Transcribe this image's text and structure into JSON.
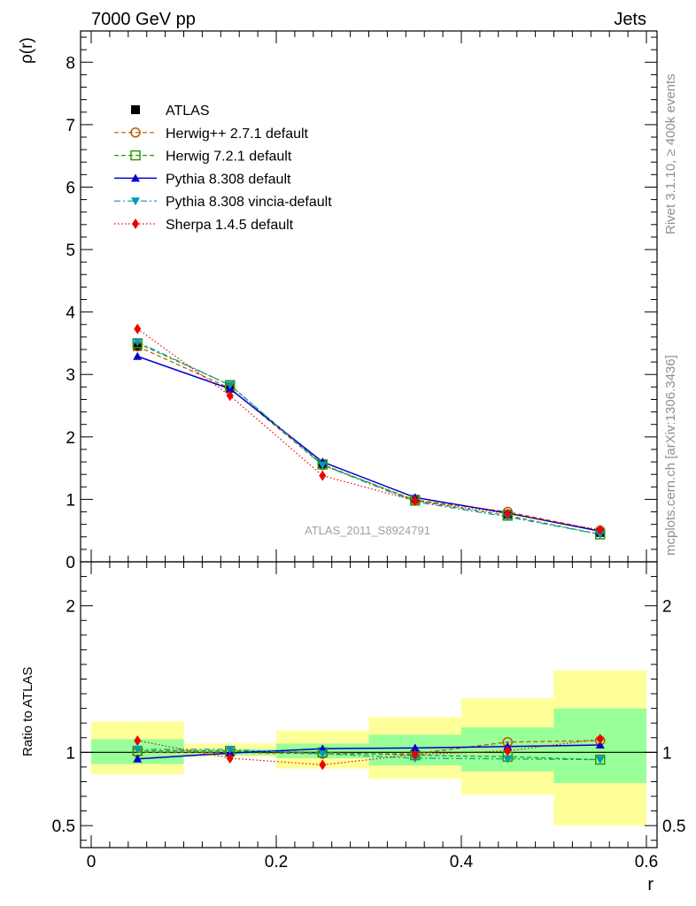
{
  "header": {
    "left": "7000 GeV pp",
    "right": "Jets"
  },
  "side_text": {
    "top": "Rivet 3.1.10, ≥ 400k events",
    "bottom": "mcplots.cern.ch [arXiv:1306.3436]"
  },
  "watermark": "ATLAS_2011_S8924791",
  "chart_data": [
    {
      "type": "line",
      "panel": "main",
      "ylabel": "ρ(r)",
      "xlabel": "",
      "xlim": [
        0,
        0.6
      ],
      "ylim": [
        0,
        8.5
      ],
      "yticks": [
        0,
        1,
        2,
        3,
        4,
        5,
        6,
        7,
        8
      ],
      "ytick_labels": [
        "0",
        "1",
        "2",
        "3",
        "4",
        "5",
        "6",
        "7",
        "8"
      ],
      "x": [
        0.05,
        0.15,
        0.25,
        0.35,
        0.45,
        0.55
      ],
      "series": [
        {
          "name": "ATLAS",
          "color": "#000000",
          "marker": "square",
          "line": "none",
          "values": [
            3.45,
            2.78,
            1.56,
            1.0,
            0.76,
            0.47
          ]
        },
        {
          "name": "Herwig++ 2.7.1 default",
          "color": "#b35900",
          "marker": "circle-open",
          "line": "dashed",
          "values": [
            3.45,
            2.78,
            1.55,
            0.99,
            0.8,
            0.5
          ]
        },
        {
          "name": "Herwig 7.2.1 default",
          "color": "#2e9a00",
          "marker": "square-open",
          "line": "dashed",
          "values": [
            3.5,
            2.83,
            1.56,
            0.98,
            0.74,
            0.44
          ]
        },
        {
          "name": "Pythia 8.308 default",
          "color": "#0000cc",
          "marker": "triangle-up",
          "line": "solid",
          "values": [
            3.29,
            2.77,
            1.6,
            1.03,
            0.78,
            0.49
          ]
        },
        {
          "name": "Pythia 8.308 vincia-default",
          "color": "#0099bb",
          "marker": "triangle-down",
          "line": "dashdot",
          "values": [
            3.52,
            2.83,
            1.55,
            0.96,
            0.72,
            0.44
          ]
        },
        {
          "name": "Sherpa 1.4.5 default",
          "color": "#ee0000",
          "marker": "diamond",
          "line": "dotted",
          "values": [
            3.73,
            2.66,
            1.38,
            0.98,
            0.77,
            0.51
          ]
        }
      ]
    },
    {
      "type": "line",
      "panel": "ratio",
      "ylabel": "Ratio to ATLAS",
      "xlabel": "r",
      "xlim": [
        0,
        0.6
      ],
      "ylim": [
        0.35,
        2.3
      ],
      "xticks": [
        0,
        0.2,
        0.4,
        0.6
      ],
      "xtick_labels": [
        "0",
        "0.2",
        "0.4",
        "0.6"
      ],
      "yticks": [
        0.5,
        1,
        2
      ],
      "ytick_labels": [
        "0.5",
        "1",
        "2"
      ],
      "reference_line": 1,
      "bands": {
        "bin_edges": [
          0,
          0.1,
          0.2,
          0.3,
          0.4,
          0.5,
          0.6
        ],
        "stat_color": "#99ff99",
        "total_color": "#ffff99",
        "stat": [
          [
            0.92,
            1.09
          ],
          [
            0.98,
            1.02
          ],
          [
            0.96,
            1.06
          ],
          [
            0.91,
            1.12
          ],
          [
            0.87,
            1.17
          ],
          [
            0.79,
            1.3
          ]
        ],
        "total": [
          [
            0.85,
            1.21
          ],
          [
            0.97,
            1.06
          ],
          [
            0.89,
            1.15
          ],
          [
            0.82,
            1.24
          ],
          [
            0.71,
            1.37
          ],
          [
            0.5,
            1.56
          ]
        ]
      },
      "x": [
        0.05,
        0.15,
        0.25,
        0.35,
        0.45,
        0.55
      ],
      "series": [
        {
          "name": "Herwig++ 2.7.1 default",
          "color": "#b35900",
          "marker": "circle-open",
          "line": "dashed",
          "values": [
            1.0,
            1.0,
            0.99,
            0.99,
            1.07,
            1.08
          ]
        },
        {
          "name": "Herwig 7.2.1 default",
          "color": "#2e9a00",
          "marker": "square-open",
          "line": "dashed",
          "values": [
            1.01,
            1.01,
            1.0,
            0.98,
            0.97,
            0.95
          ]
        },
        {
          "name": "Pythia 8.308 default",
          "color": "#0000cc",
          "marker": "triangle-up",
          "line": "solid",
          "values": [
            0.955,
            0.995,
            1.025,
            1.03,
            1.04,
            1.05
          ]
        },
        {
          "name": "Pythia 8.308 vincia-default",
          "color": "#0099bb",
          "marker": "triangle-down",
          "line": "dashdot",
          "values": [
            1.02,
            1.02,
            0.99,
            0.96,
            0.955,
            0.95
          ]
        },
        {
          "name": "Sherpa 1.4.5 default",
          "color": "#ee0000",
          "marker": "diamond",
          "line": "dotted",
          "values": [
            1.08,
            0.96,
            0.915,
            0.985,
            1.01,
            1.09
          ]
        }
      ]
    }
  ]
}
